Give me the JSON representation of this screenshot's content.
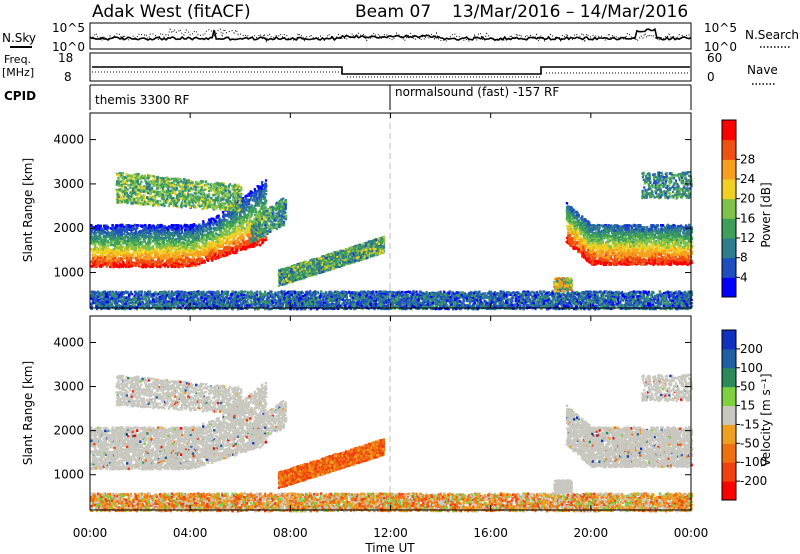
{
  "header": {
    "title": "Adak West (fitACF)",
    "beam": "Beam 07",
    "date_range": "13/Mar/2016 – 14/Mar/2016"
  },
  "panels": {
    "nsky": {
      "label": "N.Sky",
      "tick_top": "10^5",
      "tick_bot": "10^0",
      "right_label": "N.Search",
      "right_tick_top": "10^5",
      "right_tick_bot": "10^0"
    },
    "freq": {
      "label_top": "Freq.",
      "label_unit": "[MHz]",
      "tick_top": "18",
      "tick_bot": "8",
      "right_label": "Nave",
      "right_tick_top": "60",
      "right_tick_bot": "0"
    },
    "cpid": {
      "label": "CPID",
      "mode1": "themis 3300 RF",
      "mode2": "normalsound (fast) -157 RF"
    }
  },
  "chart_data": [
    {
      "type": "heatmap",
      "name": "power",
      "ylabel": "Slant Range [km]",
      "yticks": [
        1000,
        2000,
        3000,
        4000
      ],
      "ylim": [
        200,
        4600
      ],
      "colorbar_label": "Power [dB]",
      "colorbar_ticks": [
        "4",
        "8",
        "12",
        "16",
        "20",
        "24",
        "28"
      ],
      "colors": [
        "#0000ff",
        "#1f4fbf",
        "#2e7d8c",
        "#3d9f5a",
        "#7fc24a",
        "#f0d020",
        "#f7a020",
        "#f05010",
        "#ff0000"
      ]
    },
    {
      "type": "heatmap",
      "name": "velocity",
      "ylabel": "Slant Range [km]",
      "yticks": [
        1000,
        2000,
        3000,
        4000
      ],
      "ylim": [
        200,
        4600
      ],
      "colorbar_label": "Velocity [m s⁻¹]",
      "colorbar_ticks": [
        "200",
        "100",
        "50",
        "15",
        "-15",
        "-50",
        "-100",
        "-200"
      ],
      "colors": [
        "#1030c0",
        "#2060a0",
        "#2c8a5a",
        "#7ed040",
        "#c8c8c0",
        "#f0a020",
        "#f07010",
        "#f04010",
        "#ff0000"
      ]
    }
  ],
  "time_axis": {
    "label": "Time UT",
    "ticks": [
      "00:00",
      "04:00",
      "08:00",
      "12:00",
      "16:00",
      "20:00",
      "00:00"
    ]
  }
}
